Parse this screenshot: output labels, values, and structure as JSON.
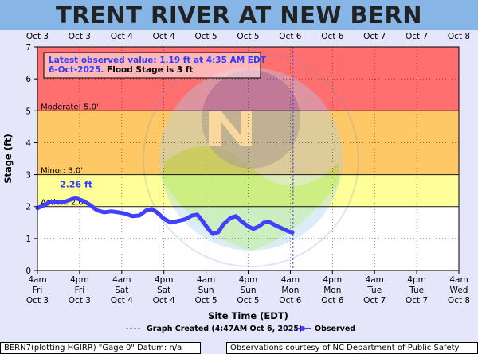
{
  "title": "TRENT RIVER AT NEW BERN",
  "chart_data": {
    "type": "line",
    "ylabel": "Stage (ft)",
    "xlabel": "Site Time (EDT)",
    "ylim": [
      0,
      7
    ],
    "yticks": [
      0,
      1,
      2,
      3,
      4,
      5,
      6,
      7
    ],
    "x_axis_start": "2025-10-03T04:00",
    "x_axis_end": "2025-10-08T04:00",
    "x_ticks_bottom": [
      [
        "4am",
        "Fri",
        "Oct 3"
      ],
      [
        "4pm",
        "Fri",
        "Oct 3"
      ],
      [
        "4am",
        "Sat",
        "Oct 4"
      ],
      [
        "4pm",
        "Sat",
        "Oct 4"
      ],
      [
        "4am",
        "Sun",
        "Oct 5"
      ],
      [
        "4pm",
        "Sun",
        "Oct 5"
      ],
      [
        "4am",
        "Mon",
        "Oct 6"
      ],
      [
        "4pm",
        "Mon",
        "Oct 6"
      ],
      [
        "4am",
        "Tue",
        "Oct 7"
      ],
      [
        "4pm",
        "Tue",
        "Oct 7"
      ],
      [
        "4am",
        "Wed",
        "Oct 8"
      ]
    ],
    "x_ticks_top": [
      "Oct 3",
      "Oct 3",
      "Oct 4",
      "Oct 4",
      "Oct 5",
      "Oct 5",
      "Oct 6",
      "Oct 6",
      "Oct 7",
      "Oct 7",
      "Oct 8"
    ],
    "flood_categories": [
      {
        "name": "Action",
        "label": "Action: 2.0'",
        "from": 2.0,
        "to": 3.0,
        "color": "#ffff99"
      },
      {
        "name": "Minor",
        "label": "Minor: 3.0'",
        "from": 3.0,
        "to": 5.0,
        "color": "#ffc866"
      },
      {
        "name": "Moderate",
        "label": "Moderate: 5.0'",
        "from": 5.0,
        "to": 7.0,
        "color": "#ff6f6f"
      }
    ],
    "series": [
      {
        "name": "Observed",
        "color": "#4040ff",
        "points": [
          [
            "2025-10-03T04:00",
            1.95
          ],
          [
            "2025-10-03T06:00",
            2.05
          ],
          [
            "2025-10-03T08:00",
            2.15
          ],
          [
            "2025-10-03T10:00",
            2.12
          ],
          [
            "2025-10-03T12:00",
            2.16
          ],
          [
            "2025-10-03T14:00",
            2.24
          ],
          [
            "2025-10-03T15:00",
            2.26
          ],
          [
            "2025-10-03T17:00",
            2.18
          ],
          [
            "2025-10-03T19:00",
            2.05
          ],
          [
            "2025-10-03T21:00",
            1.88
          ],
          [
            "2025-10-03T23:00",
            1.82
          ],
          [
            "2025-10-04T01:00",
            1.85
          ],
          [
            "2025-10-04T03:00",
            1.82
          ],
          [
            "2025-10-04T05:00",
            1.78
          ],
          [
            "2025-10-04T07:00",
            1.7
          ],
          [
            "2025-10-04T09:00",
            1.72
          ],
          [
            "2025-10-04T11:00",
            1.88
          ],
          [
            "2025-10-04T12:30",
            1.92
          ],
          [
            "2025-10-04T14:00",
            1.82
          ],
          [
            "2025-10-04T16:00",
            1.62
          ],
          [
            "2025-10-04T18:00",
            1.5
          ],
          [
            "2025-10-04T20:00",
            1.55
          ],
          [
            "2025-10-04T22:00",
            1.6
          ],
          [
            "2025-10-05T00:00",
            1.72
          ],
          [
            "2025-10-05T01:30",
            1.75
          ],
          [
            "2025-10-05T03:00",
            1.55
          ],
          [
            "2025-10-05T05:00",
            1.25
          ],
          [
            "2025-10-05T06:00",
            1.14
          ],
          [
            "2025-10-05T07:30",
            1.2
          ],
          [
            "2025-10-05T09:00",
            1.45
          ],
          [
            "2025-10-05T11:00",
            1.65
          ],
          [
            "2025-10-05T12:30",
            1.7
          ],
          [
            "2025-10-05T14:00",
            1.55
          ],
          [
            "2025-10-05T16:00",
            1.38
          ],
          [
            "2025-10-05T17:30",
            1.3
          ],
          [
            "2025-10-05T19:00",
            1.38
          ],
          [
            "2025-10-05T20:30",
            1.5
          ],
          [
            "2025-10-05T22:00",
            1.52
          ],
          [
            "2025-10-06T00:00",
            1.4
          ],
          [
            "2025-10-06T02:00",
            1.3
          ],
          [
            "2025-10-06T03:30",
            1.22
          ],
          [
            "2025-10-06T04:35",
            1.19
          ]
        ]
      }
    ],
    "peak_annotation": {
      "text": "2.26 ft",
      "at": "2025-10-03T15:00",
      "value": 2.26,
      "color": "#2e3cff"
    },
    "graph_created_line": {
      "at": "2025-10-06T04:47",
      "label": "Graph Created (4:47AM Oct 6, 2025)"
    },
    "info_box": {
      "line1": "Latest observed value: 1.19 ft at 4:35 AM EDT",
      "line2a": "6-Oct-2025.",
      "line2b": " Flood Stage is 3 ft"
    },
    "legend": {
      "created": "Graph Created (4:47AM Oct 6, 2025)",
      "observed": "Observed"
    },
    "colors": {
      "no_flood": "#ffffff",
      "grid": "#000000",
      "observed": "#4040ff",
      "info_text": "#2e3cff"
    }
  },
  "footer": {
    "left": "BERN7(plotting HGIRR) \"Gage 0\" Datum: n/a",
    "right": "Observations courtesy of NC Department of Public Safety"
  }
}
